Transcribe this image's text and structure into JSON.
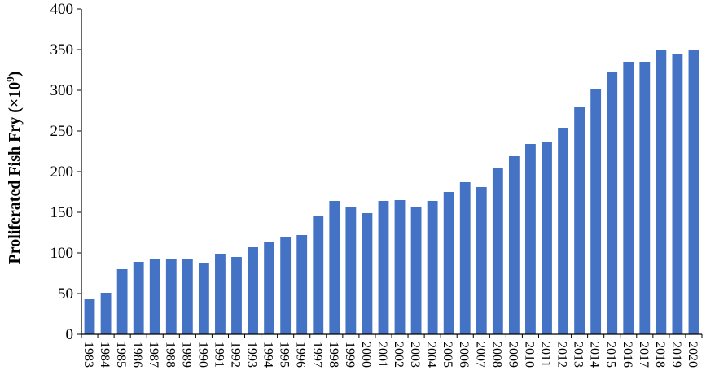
{
  "chart_data": {
    "type": "bar",
    "ylabel": "Proliferated Fish Fry (×10",
    "ylabel_exponent": "9",
    "ylabel_close": ")",
    "ylim": [
      0,
      400
    ],
    "yticks": [
      "0",
      "50",
      "100",
      "150",
      "200",
      "250",
      "300",
      "350",
      "400"
    ],
    "grid": false,
    "bar_color": "#4472c4",
    "categories": [
      "1983",
      "1984",
      "1985",
      "1986",
      "1987",
      "1988",
      "1989",
      "1990",
      "1991",
      "1992",
      "1993",
      "1994",
      "1995",
      "1996",
      "1997",
      "1998",
      "1999",
      "2000",
      "2001",
      "2002",
      "2003",
      "2004",
      "2005",
      "2006",
      "2007",
      "2008",
      "2009",
      "2010",
      "2011",
      "2012",
      "2013",
      "2014",
      "2015",
      "2016",
      "2017",
      "2018",
      "2019",
      "2020"
    ],
    "values": [
      43,
      51,
      80,
      89,
      92,
      92,
      93,
      88,
      99,
      95,
      107,
      114,
      119,
      122,
      146,
      164,
      156,
      149,
      164,
      165,
      156,
      164,
      175,
      187,
      181,
      204,
      219,
      234,
      236,
      254,
      279,
      301,
      322,
      335,
      335,
      349,
      345,
      349
    ]
  }
}
